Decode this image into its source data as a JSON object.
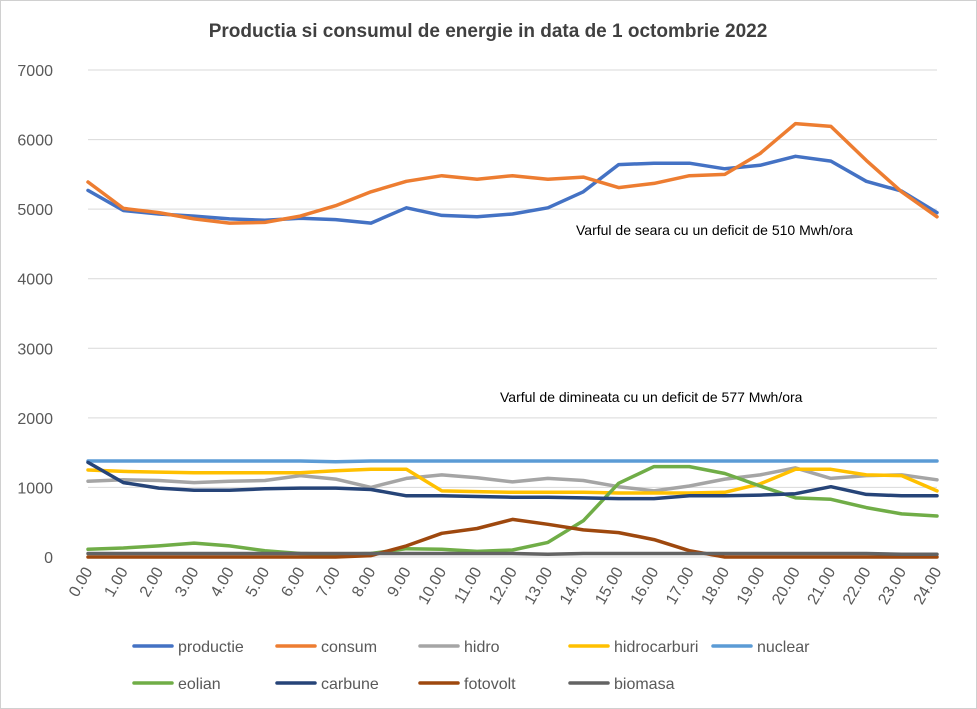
{
  "chart_data": {
    "type": "line",
    "title": "Productia si consumul de energie in data de 1 octombrie 2022",
    "xlabel": "",
    "ylabel": "",
    "ylim": [
      0,
      7000
    ],
    "yticks": [
      0,
      1000,
      2000,
      3000,
      4000,
      5000,
      6000,
      7000
    ],
    "grid": true,
    "legend_position": "bottom",
    "x": [
      "0.00",
      "1.00",
      "2.00",
      "3.00",
      "4.00",
      "5.00",
      "6.00",
      "7.00",
      "8.00",
      "9.00",
      "10.00",
      "11.00",
      "12.00",
      "13.00",
      "14.00",
      "15.00",
      "16.00",
      "17.00",
      "18.00",
      "19.00",
      "20.00",
      "21.00",
      "22.00",
      "23.00",
      "24.00"
    ],
    "series": [
      {
        "name": "productie",
        "color": "#4472C4",
        "values": [
          5270,
          4980,
          4930,
          4900,
          4860,
          4840,
          4870,
          4850,
          4800,
          5020,
          4910,
          4890,
          4930,
          5020,
          5250,
          5640,
          5660,
          5660,
          5580,
          5630,
          5760,
          5690,
          5400,
          5260,
          4950
        ]
      },
      {
        "name": "consum",
        "color": "#ED7D31",
        "values": [
          5390,
          5010,
          4950,
          4860,
          4800,
          4810,
          4900,
          5050,
          5250,
          5400,
          5480,
          5430,
          5480,
          5430,
          5460,
          5310,
          5370,
          5480,
          5500,
          5800,
          6230,
          6190,
          5700,
          5250,
          4890
        ]
      },
      {
        "name": "hidro",
        "color": "#A5A5A5",
        "values": [
          1090,
          1110,
          1100,
          1070,
          1090,
          1100,
          1170,
          1120,
          1000,
          1130,
          1180,
          1140,
          1080,
          1130,
          1100,
          1010,
          950,
          1020,
          1120,
          1180,
          1280,
          1130,
          1170,
          1180,
          1110
        ]
      },
      {
        "name": "hidrocarburi",
        "color": "#FFC000",
        "values": [
          1250,
          1230,
          1220,
          1210,
          1210,
          1210,
          1210,
          1240,
          1260,
          1260,
          950,
          940,
          930,
          930,
          930,
          920,
          920,
          920,
          930,
          1050,
          1260,
          1260,
          1180,
          1170,
          950
        ]
      },
      {
        "name": "nuclear",
        "color": "#5B9BD5",
        "values": [
          1380,
          1380,
          1380,
          1380,
          1380,
          1380,
          1380,
          1370,
          1380,
          1380,
          1380,
          1380,
          1380,
          1380,
          1380,
          1380,
          1380,
          1380,
          1380,
          1380,
          1380,
          1380,
          1380,
          1380,
          1380
        ]
      },
      {
        "name": "eolian",
        "color": "#70AD47",
        "values": [
          110,
          130,
          160,
          200,
          160,
          90,
          50,
          40,
          50,
          120,
          110,
          80,
          100,
          210,
          520,
          1060,
          1300,
          1300,
          1200,
          1020,
          850,
          830,
          710,
          620,
          590
        ]
      },
      {
        "name": "carbune",
        "color": "#264478",
        "values": [
          1360,
          1070,
          990,
          960,
          960,
          980,
          990,
          990,
          970,
          880,
          880,
          870,
          860,
          860,
          850,
          840,
          840,
          880,
          880,
          890,
          910,
          1010,
          900,
          880,
          880
        ]
      },
      {
        "name": "fotovolt",
        "color": "#9E480E",
        "values": [
          0,
          0,
          0,
          0,
          0,
          0,
          0,
          0,
          20,
          160,
          340,
          410,
          540,
          470,
          390,
          350,
          250,
          90,
          0,
          0,
          0,
          0,
          0,
          0,
          0
        ]
      },
      {
        "name": "biomasa",
        "color": "#636363",
        "values": [
          50,
          50,
          50,
          50,
          50,
          50,
          50,
          50,
          50,
          50,
          50,
          50,
          50,
          40,
          50,
          50,
          50,
          50,
          50,
          50,
          50,
          50,
          50,
          40,
          40
        ]
      }
    ],
    "annotations": [
      {
        "text": "Varful de seara cu un deficit de 510 Mwh/ora"
      },
      {
        "text": "Varful de dimineata cu un deficit de 577 Mwh/ora"
      }
    ]
  }
}
